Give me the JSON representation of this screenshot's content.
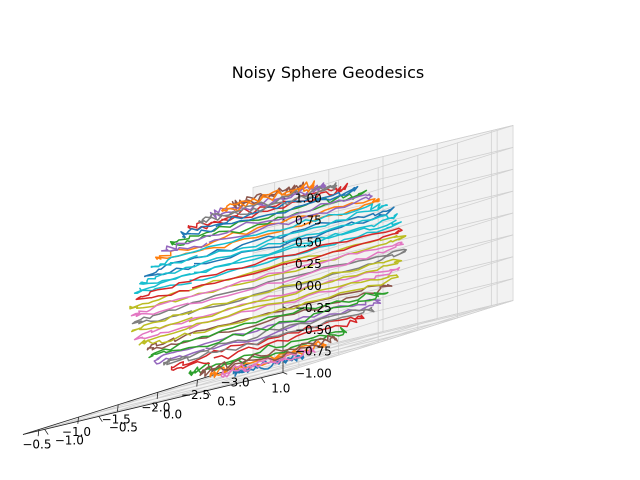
{
  "chart_data": {
    "type": "line",
    "projection": "3d",
    "title": "Noisy Sphere Geodesics",
    "xlabel": "",
    "ylabel": "",
    "zlabel": "",
    "grid": true,
    "legend": "none",
    "xlim": [
      -3.2,
      -0.3
    ],
    "ylim": [
      -1.2,
      1.2
    ],
    "zlim": [
      -1.0,
      1.0
    ],
    "x_ticks": [
      "−3.0",
      "−2.5",
      "−2.0",
      "−1.5",
      "−1.0",
      "−0.5"
    ],
    "y_ticks": [
      "−1.0",
      "−0.5",
      "0.0",
      "0.5",
      "1.0"
    ],
    "z_ticks": [
      "−1.00",
      "−0.75",
      "−0.50",
      "−0.25",
      "0.00",
      "0.25",
      "0.50",
      "0.75",
      "1.00"
    ],
    "sphere": {
      "center": [
        -1.75,
        0.0,
        0.0
      ],
      "radius": 1.0,
      "noise_amplitude": 0.04
    },
    "colors": [
      "#1f77b4",
      "#ff7f0e",
      "#2ca02c",
      "#d62728",
      "#9467bd",
      "#8c564b",
      "#e377c2",
      "#7f7f7f",
      "#bcbd22",
      "#17becf"
    ],
    "series": [
      {
        "latitude_deg": -75
      },
      {
        "latitude_deg": -65
      },
      {
        "latitude_deg": -55
      },
      {
        "latitude_deg": -45
      },
      {
        "latitude_deg": -35
      },
      {
        "latitude_deg": -25
      },
      {
        "latitude_deg": -15
      },
      {
        "latitude_deg": -5
      },
      {
        "latitude_deg": 5
      },
      {
        "latitude_deg": 15
      },
      {
        "latitude_deg": 25
      },
      {
        "latitude_deg": 35
      },
      {
        "latitude_deg": 45
      },
      {
        "latitude_deg": 55
      },
      {
        "latitude_deg": 65
      },
      {
        "latitude_deg": 75
      },
      {
        "latitude_deg": -70
      },
      {
        "latitude_deg": -40
      },
      {
        "latitude_deg": -10
      },
      {
        "latitude_deg": 20
      },
      {
        "latitude_deg": 50
      },
      {
        "latitude_deg": 70
      },
      {
        "latitude_deg": -30
      },
      {
        "latitude_deg": 10
      },
      {
        "latitude_deg": 40
      },
      {
        "latitude_deg": -60
      },
      {
        "latitude_deg": 0
      },
      {
        "latitude_deg": 60
      },
      {
        "latitude_deg": -20
      },
      {
        "latitude_deg": 30
      }
    ]
  }
}
